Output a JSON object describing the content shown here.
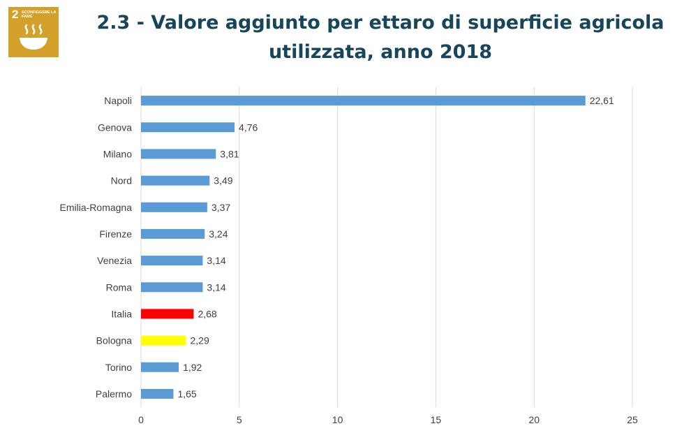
{
  "badge": {
    "number": "2",
    "text": "SCONFIGGERE LA FAME",
    "color": "#d3a029",
    "icon": "food-bowl-icon"
  },
  "chart_data": {
    "type": "bar",
    "orientation": "horizontal",
    "title": "2.3 - Valore aggiunto per ettaro di superficie agricola utilizzata, anno 2018",
    "categories": [
      "Napoli",
      "Genova",
      "Milano",
      "Nord",
      "Emilia-Romagna",
      "Firenze",
      "Venezia",
      "Roma",
      "Italia",
      "Bologna",
      "Torino",
      "Palermo"
    ],
    "values": [
      22.61,
      4.76,
      3.81,
      3.49,
      3.37,
      3.24,
      3.14,
      3.14,
      2.68,
      2.29,
      1.92,
      1.65
    ],
    "value_labels": [
      "22,61",
      "4,76",
      "3,81",
      "3,49",
      "3,37",
      "3,24",
      "3,14",
      "3,14",
      "2,68",
      "2,29",
      "1,92",
      "1,65"
    ],
    "colors": [
      "#5b9bd5",
      "#5b9bd5",
      "#5b9bd5",
      "#5b9bd5",
      "#5b9bd5",
      "#5b9bd5",
      "#5b9bd5",
      "#5b9bd5",
      "#ff0000",
      "#ffff00",
      "#5b9bd5",
      "#5b9bd5"
    ],
    "xlim": [
      0,
      25
    ],
    "xticks": [
      0,
      5,
      10,
      15,
      20,
      25
    ],
    "xlabel": "",
    "ylabel": "",
    "grid": "vertical",
    "legend": "none"
  }
}
